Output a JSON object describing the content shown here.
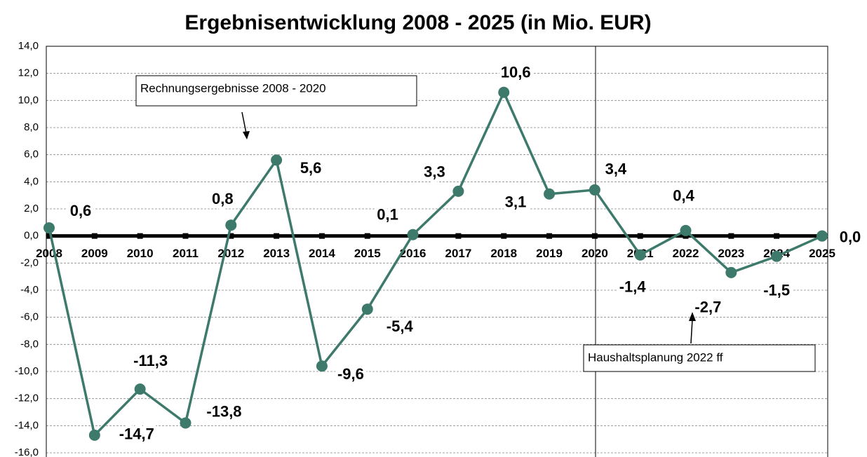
{
  "chart_data": {
    "type": "line",
    "title": "Ergebnisentwicklung 2008 - 2025 (in Mio. EUR)",
    "categories": [
      "2008",
      "2009",
      "2010",
      "2011",
      "2012",
      "2013",
      "2014",
      "2015",
      "2016",
      "2017",
      "2018",
      "2019",
      "2020",
      "2021",
      "2022",
      "2023",
      "2024",
      "2025"
    ],
    "series": [
      {
        "color": "#3e7a6b",
        "values": [
          0.6,
          -14.7,
          -11.3,
          -13.8,
          0.8,
          5.6,
          -9.6,
          -5.4,
          0.1,
          3.3,
          10.6,
          3.1,
          3.4,
          -1.4,
          0.4,
          -2.7,
          -1.5,
          0.0
        ],
        "value_labels": [
          "0,6",
          "-14,7",
          "-11,3",
          "-13,8",
          "0,8",
          "5,6",
          "-9,6",
          "-5,4",
          "0,1",
          "3,3",
          "10,6",
          "3,1",
          "3,4",
          "-1,4",
          "0,4",
          "-2,7",
          "-1,5",
          "0,0"
        ]
      }
    ],
    "ylim": [
      -16,
      14
    ],
    "yticks": [
      {
        "value": -16,
        "label": "-16,0"
      },
      {
        "value": -14,
        "label": "-14,0"
      },
      {
        "value": -12,
        "label": "-12,0"
      },
      {
        "value": -10,
        "label": "-10,0"
      },
      {
        "value": -8,
        "label": "-8,0"
      },
      {
        "value": -6,
        "label": "-6,0"
      },
      {
        "value": -4,
        "label": "-4,0"
      },
      {
        "value": -2,
        "label": "-2,0"
      },
      {
        "value": 0,
        "label": "0,0"
      },
      {
        "value": 2,
        "label": "2,0"
      },
      {
        "value": 4,
        "label": "4,0"
      },
      {
        "value": 6,
        "label": "6,0"
      },
      {
        "value": 8,
        "label": "8,0"
      },
      {
        "value": 10,
        "label": "10,0"
      },
      {
        "value": 12,
        "label": "12,0"
      },
      {
        "value": 14,
        "label": "14,0"
      }
    ],
    "grid": true,
    "annotations": [
      "Rechnungsergebnisse 2008 - 2020",
      "Haushaltsplanung 2022 ff"
    ]
  }
}
